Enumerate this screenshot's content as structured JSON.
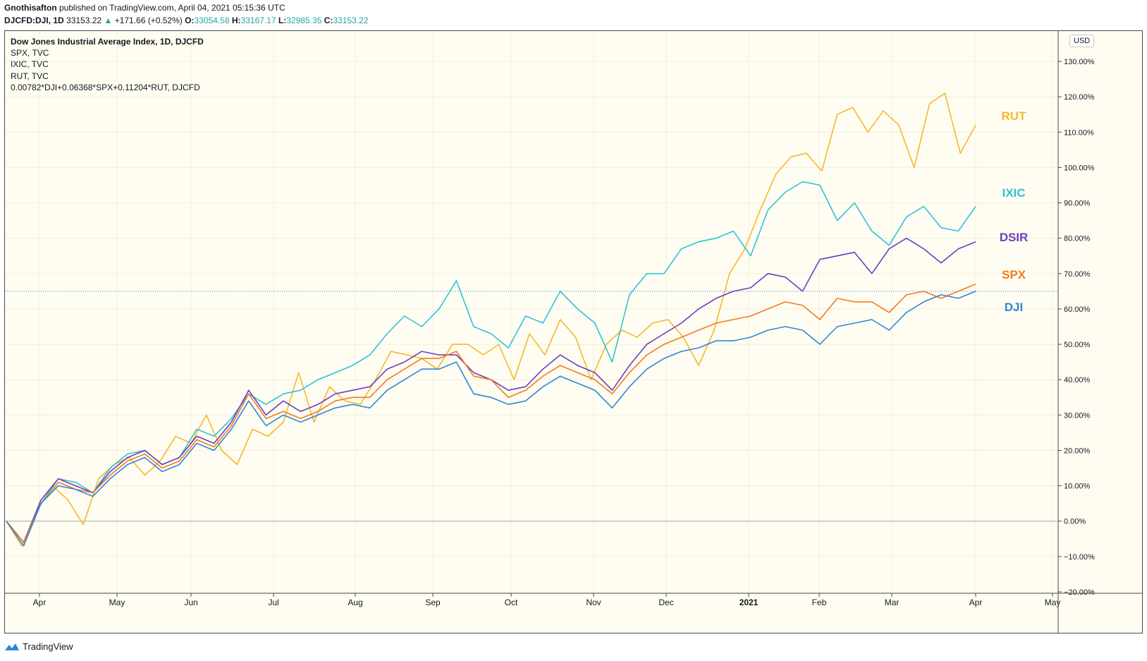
{
  "header": {
    "author": "Gnothisafton",
    "published": "published on TradingView.com, April 04, 2021 05:15:36 UTC",
    "symbol": "DJCFD:DJI, 1D",
    "last": "33153.22",
    "change": "+171.66 (+0.52%)",
    "o_label": "O:",
    "o_value": "33054.58",
    "h_label": "H:",
    "h_value": "33167.17",
    "l_label": "L:",
    "l_value": "32985.35",
    "c_label": "C:",
    "c_value": "33153.22"
  },
  "legend": [
    "Dow Jones Industrial Average Index, 1D, DJCFD",
    "SPX, TVC",
    "IXIC, TVC",
    "RUT, TVC",
    "0.00782*DJI+0.06368*SPX+0.11204*RUT, DJCFD"
  ],
  "currency": "USD",
  "footer": {
    "brand": "TradingView"
  },
  "colors": {
    "RUT": "#f5b72a",
    "IXIC": "#2ec3d6",
    "DSIR": "#6a3fc0",
    "SPX": "#f07c20",
    "DJI": "#2f86d9",
    "background": "#fffdf2",
    "grid": "#efeedd",
    "zero_line": "#a9abb3",
    "ref_line": "#2f86d9"
  },
  "chart_data": {
    "type": "line",
    "x_labels": [
      "Apr",
      "May",
      "Jun",
      "Jul",
      "Aug",
      "Sep",
      "Oct",
      "Nov",
      "Dec",
      "2021",
      "Feb",
      "Mar",
      "Apr",
      "May"
    ],
    "y_ticks": [
      "130.00%",
      "120.00%",
      "110.00%",
      "100.00%",
      "90.00%",
      "80.00%",
      "70.00%",
      "60.00%",
      "50.00%",
      "40.00%",
      "30.00%",
      "20.00%",
      "10.00%",
      "0.00%",
      "−10.00%",
      "−20.00%"
    ],
    "ylim": [
      -20,
      130
    ],
    "grid": true,
    "reference_line_value": 65,
    "series": [
      {
        "name": "RUT",
        "values": [
          0,
          -7,
          3,
          10,
          6,
          -1,
          12,
          16,
          18,
          13,
          17,
          24,
          22,
          30,
          20,
          16,
          26,
          24,
          28,
          42,
          28,
          38,
          34,
          33,
          40,
          48,
          47,
          46,
          43,
          50,
          50,
          47,
          50,
          40,
          53,
          47,
          57,
          52,
          40,
          50,
          54,
          52,
          56,
          57,
          52,
          44,
          54,
          70,
          77,
          88,
          98,
          103,
          104,
          99,
          115,
          117,
          110,
          116,
          112,
          100,
          118,
          121,
          104,
          112
        ]
      },
      {
        "name": "IXIC",
        "values": [
          0,
          -6,
          5,
          12,
          11,
          8,
          15,
          19,
          20,
          16,
          18,
          26,
          24,
          29,
          36,
          33,
          36,
          37,
          40,
          42,
          44,
          47,
          53,
          58,
          55,
          60,
          68,
          55,
          53,
          49,
          58,
          56,
          65,
          60,
          56,
          45,
          64,
          70,
          70,
          77,
          79,
          80,
          82,
          75,
          88,
          93,
          96,
          95,
          85,
          90,
          82,
          78,
          86,
          89,
          83,
          82,
          89
        ]
      },
      {
        "name": "DSIR",
        "values": [
          0,
          -6,
          6,
          12,
          10,
          8,
          14,
          18,
          20,
          16,
          18,
          24,
          22,
          28,
          37,
          30,
          34,
          31,
          33,
          36,
          37,
          38,
          43,
          45,
          48,
          47,
          47,
          42,
          40,
          37,
          38,
          43,
          47,
          44,
          42,
          37,
          44,
          50,
          53,
          56,
          60,
          63,
          65,
          66,
          70,
          69,
          65,
          74,
          75,
          76,
          70,
          77,
          80,
          77,
          73,
          77,
          79
        ]
      },
      {
        "name": "SPX",
        "values": [
          0,
          -6,
          5,
          11,
          9,
          8,
          13,
          17,
          19,
          15,
          17,
          23,
          21,
          27,
          36,
          29,
          31,
          29,
          31,
          34,
          35,
          35,
          40,
          43,
          46,
          46,
          48,
          41,
          40,
          35,
          37,
          41,
          44,
          42,
          40,
          36,
          42,
          47,
          50,
          52,
          54,
          56,
          57,
          58,
          60,
          62,
          61,
          57,
          63,
          62,
          62,
          59,
          64,
          65,
          63,
          65,
          67
        ]
      },
      {
        "name": "DJI",
        "values": [
          0,
          -7,
          5,
          10,
          9,
          7,
          12,
          16,
          18,
          14,
          16,
          22,
          20,
          26,
          34,
          27,
          30,
          28,
          30,
          32,
          33,
          32,
          37,
          40,
          43,
          43,
          45,
          36,
          35,
          33,
          34,
          38,
          41,
          39,
          37,
          32,
          38,
          43,
          46,
          48,
          49,
          51,
          51,
          52,
          54,
          55,
          54,
          50,
          55,
          56,
          57,
          54,
          59,
          62,
          64,
          63,
          65
        ]
      }
    ]
  }
}
